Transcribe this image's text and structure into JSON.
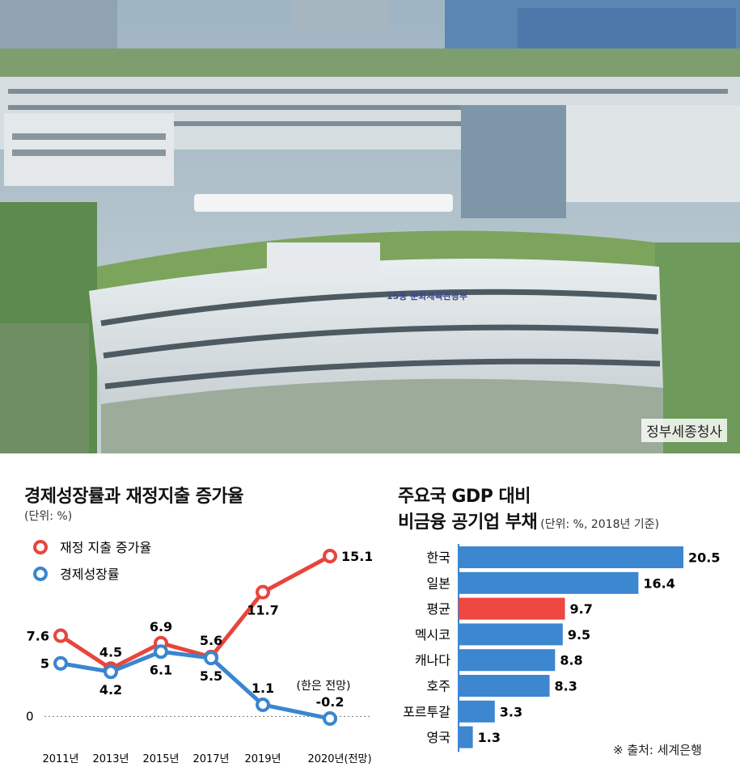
{
  "photo": {
    "caption": "정부세종청사"
  },
  "chart_data": [
    {
      "type": "line",
      "title": "경제성장률과 재정지출 증가율",
      "unit": "(단위: %)",
      "x": [
        "2011년",
        "2013년",
        "2015년",
        "2017년",
        "2019년",
        "2020년(전망)"
      ],
      "series": [
        {
          "name": "재정 지출 증가율",
          "color": "#e8453c",
          "values": [
            7.6,
            4.5,
            6.9,
            5.6,
            11.7,
            15.1
          ],
          "labels": [
            "7.6",
            "4.5",
            "6.9",
            "5.6",
            "11.7",
            "15.1"
          ]
        },
        {
          "name": "경제성장률",
          "color": "#3a86cf",
          "values": [
            5,
            4.2,
            6.1,
            5.5,
            1.1,
            -0.2
          ],
          "labels": [
            "5",
            "4.2",
            "6.1",
            "5.5",
            "1.1",
            "-0.2"
          ]
        }
      ],
      "baseline": {
        "value": 0,
        "label": "0"
      },
      "annotation": "(한은 전망)",
      "grid": false,
      "legend": "top-left"
    },
    {
      "type": "bar",
      "orientation": "horizontal",
      "title_line1": "주요국 GDP 대비",
      "title_line2": "비금융 공기업 부채",
      "unit": "(단위: %, 2018년 기준)",
      "categories": [
        "한국",
        "일본",
        "평균",
        "멕시코",
        "캐나다",
        "호주",
        "포르투갈",
        "영국"
      ],
      "values": [
        20.5,
        16.4,
        9.7,
        9.5,
        8.8,
        8.3,
        3.3,
        1.3
      ],
      "labels": [
        "20.5",
        "16.4",
        "9.7",
        "9.5",
        "8.8",
        "8.3",
        "3.3",
        "1.3"
      ],
      "bar_color": "#3d86d0",
      "highlight_color": "#ee4640",
      "highlight": "평균",
      "source": "※ 출처: 세계은행"
    }
  ]
}
